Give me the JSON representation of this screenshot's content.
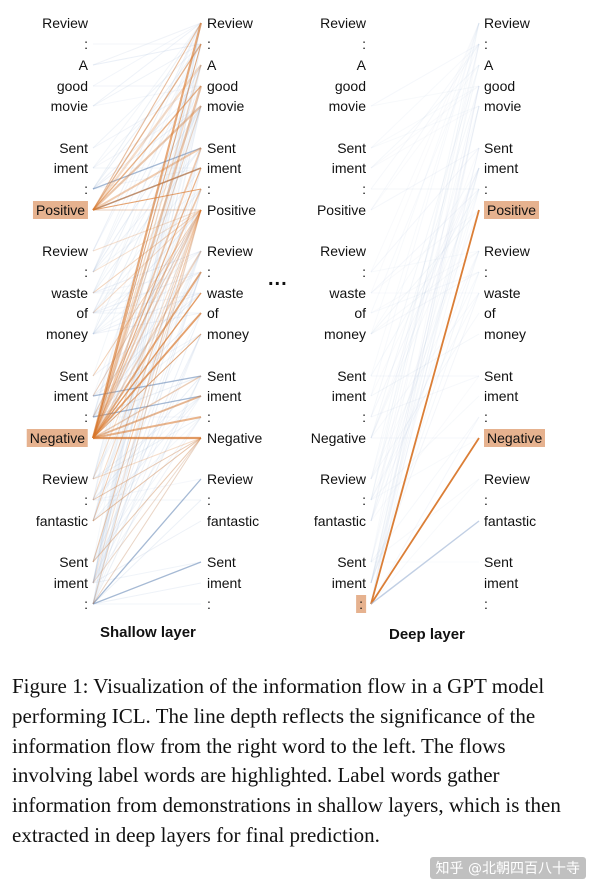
{
  "tokens": [
    "Review",
    ":",
    "A",
    "good",
    "movie",
    "Sent",
    "iment",
    ":",
    "Positive",
    "Review",
    ":",
    "waste",
    "of",
    "money",
    "Sent",
    "iment",
    ":",
    "Negative",
    "Review",
    ":",
    "fantastic",
    "Sent",
    "iment",
    ":"
  ],
  "panels": {
    "shallow": {
      "title": "Shallow layer",
      "highlight": [
        8,
        17
      ]
    },
    "deep": {
      "title": "Deep layer",
      "highlight_left": [
        23
      ],
      "highlight_right": [
        8,
        17
      ]
    }
  },
  "ellipsis": "...",
  "caption": "Figure 1: Visualization of the information flow in a GPT model performing ICL. The line depth reflects the significance of the information flow from the right word to the left. The flows involving label words are highlighted. Label words gather information from demonstrations in shallow layers, which is then extracted in deep layers for final prediction.",
  "watermark": "知乎 @北朝四百八十寺",
  "colors": {
    "orange": "#d9772b",
    "blue": "#5b7fb0",
    "faint_blue": "#9fb6d6",
    "highlight": "#e6b28f"
  }
}
